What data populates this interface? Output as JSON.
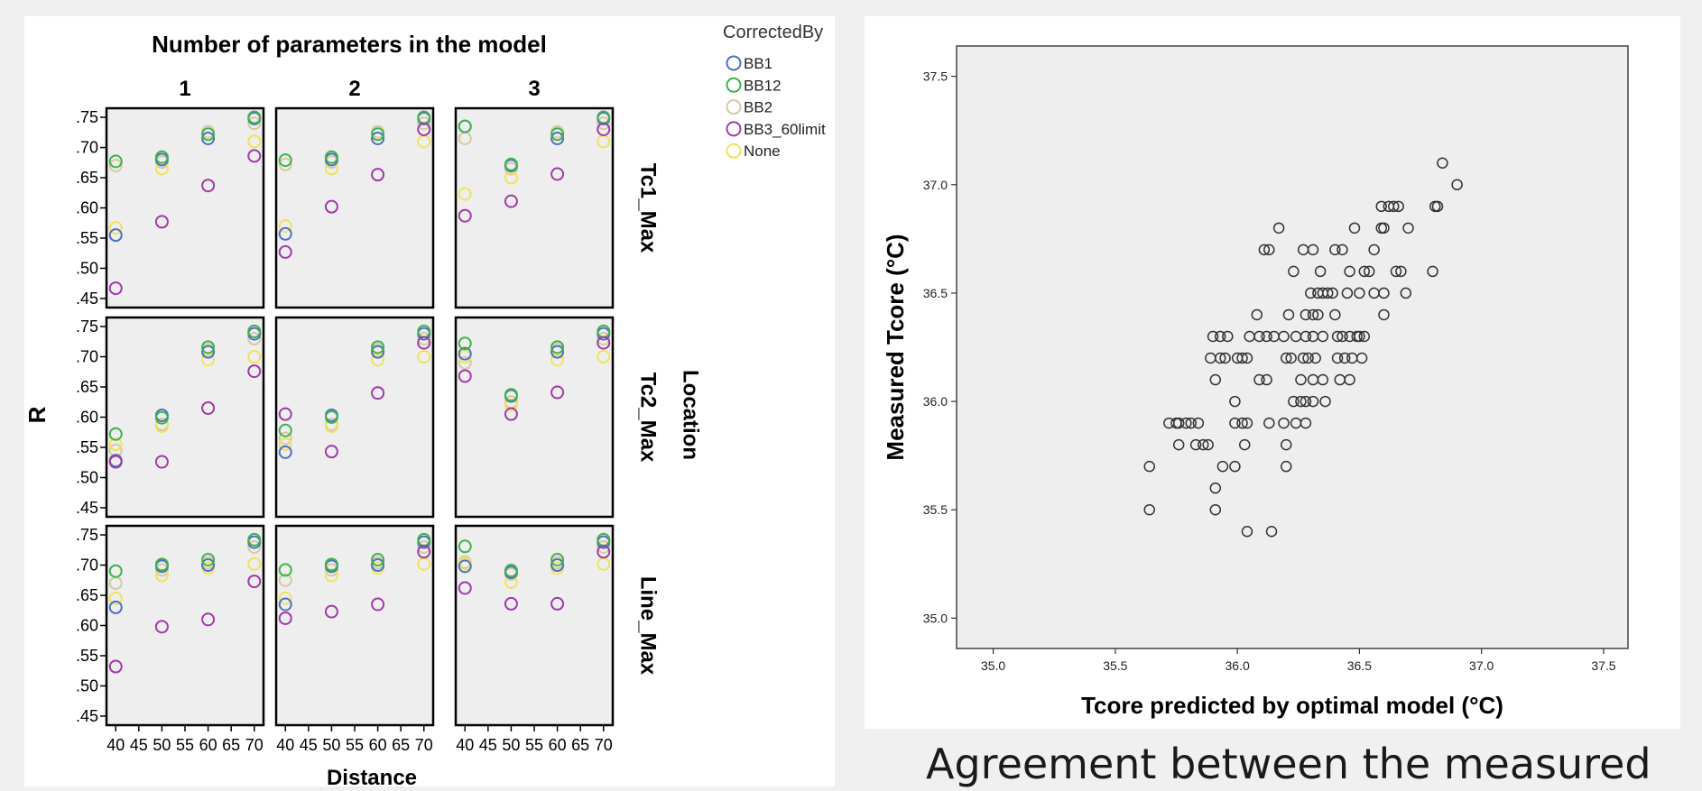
{
  "caption": "Agreement between the measured",
  "chart_data": [
    {
      "type": "scatter",
      "title": "Number of parameters in the model",
      "xlabel": "Distance",
      "ylabel": "R",
      "row_group_label": "Location",
      "legend_title": "CorrectedBy",
      "legend_position": "top-right",
      "grid": false,
      "columns": [
        "1",
        "2",
        "3"
      ],
      "rows": [
        "Tc1_Max",
        "Tc2_Max",
        "Line_Max"
      ],
      "xlim": [
        38,
        72
      ],
      "ylim": [
        0.435,
        0.765
      ],
      "x_ticks": [
        "40",
        "45",
        "50",
        "55",
        "60",
        "65",
        "70"
      ],
      "y_ticks": [
        ".45",
        ".50",
        ".55",
        ".60",
        ".65",
        ".70",
        ".75"
      ],
      "series": [
        {
          "name": "BB1",
          "color": "#4f6fc4"
        },
        {
          "name": "BB12",
          "color": "#3cb44b"
        },
        {
          "name": "BB2",
          "color": "#d6c9a0"
        },
        {
          "name": "BB3_60limit",
          "color": "#a03aa8"
        },
        {
          "name": "None",
          "color": "#f0e35a"
        }
      ],
      "x": [
        40,
        50,
        60,
        70
      ],
      "panels": [
        {
          "row": "Tc1_Max",
          "column": "1",
          "values": {
            "BB1": [
              0.555,
              0.68,
              0.715,
              0.748
            ],
            "BB12": [
              0.677,
              0.684,
              0.722,
              0.75
            ],
            "BB2": [
              0.67,
              0.676,
              0.726,
              0.74
            ],
            "BB3_60limit": [
              0.467,
              0.577,
              0.637,
              0.686
            ],
            "None": [
              0.567,
              0.665,
              0.715,
              0.71
            ]
          }
        },
        {
          "row": "Tc1_Max",
          "column": "2",
          "values": {
            "BB1": [
              0.557,
              0.68,
              0.715,
              0.748
            ],
            "BB12": [
              0.679,
              0.684,
              0.722,
              0.75
            ],
            "BB2": [
              0.672,
              0.676,
              0.726,
              0.74
            ],
            "BB3_60limit": [
              0.527,
              0.602,
              0.655,
              0.73
            ],
            "None": [
              0.57,
              0.665,
              0.715,
              0.71
            ]
          }
        },
        {
          "row": "Tc1_Max",
          "column": "3",
          "values": {
            "BB1": [
              0.735,
              0.67,
              0.715,
              0.748
            ],
            "BB12": [
              0.735,
              0.672,
              0.722,
              0.75
            ],
            "BB2": [
              0.715,
              0.665,
              0.726,
              0.74
            ],
            "BB3_60limit": [
              0.587,
              0.611,
              0.656,
              0.73
            ],
            "None": [
              0.623,
              0.65,
              0.715,
              0.71
            ]
          }
        },
        {
          "row": "Tc2_Max",
          "column": "1",
          "values": {
            "BB1": [
              0.528,
              0.603,
              0.708,
              0.738
            ],
            "BB12": [
              0.572,
              0.599,
              0.716,
              0.742
            ],
            "BB2": [
              0.545,
              0.588,
              0.712,
              0.73
            ],
            "BB3_60limit": [
              0.526,
              0.526,
              0.615,
              0.676
            ],
            "None": [
              0.555,
              0.585,
              0.695,
              0.7
            ]
          }
        },
        {
          "row": "Tc2_Max",
          "column": "2",
          "values": {
            "BB1": [
              0.542,
              0.603,
              0.708,
              0.738
            ],
            "BB12": [
              0.578,
              0.6,
              0.716,
              0.742
            ],
            "BB2": [
              0.565,
              0.588,
              0.712,
              0.73
            ],
            "BB3_60limit": [
              0.605,
              0.543,
              0.64,
              0.723
            ],
            "None": [
              0.555,
              0.585,
              0.695,
              0.7
            ]
          }
        },
        {
          "row": "Tc2_Max",
          "column": "3",
          "values": {
            "BB1": [
              0.705,
              0.635,
              0.708,
              0.738
            ],
            "BB12": [
              0.722,
              0.637,
              0.716,
              0.742
            ],
            "BB2": [
              0.69,
              0.625,
              0.712,
              0.73
            ],
            "BB3_60limit": [
              0.668,
              0.605,
              0.641,
              0.723
            ],
            "None": [
              0.7,
              0.62,
              0.695,
              0.7
            ]
          }
        },
        {
          "row": "Line_Max",
          "column": "1",
          "values": {
            "BB1": [
              0.63,
              0.698,
              0.7,
              0.738
            ],
            "BB12": [
              0.69,
              0.701,
              0.709,
              0.742
            ],
            "BB2": [
              0.67,
              0.692,
              0.704,
              0.73
            ],
            "BB3_60limit": [
              0.532,
              0.598,
              0.61,
              0.673
            ],
            "None": [
              0.645,
              0.683,
              0.695,
              0.702
            ]
          }
        },
        {
          "row": "Line_Max",
          "column": "2",
          "values": {
            "BB1": [
              0.635,
              0.698,
              0.7,
              0.738
            ],
            "BB12": [
              0.692,
              0.701,
              0.709,
              0.742
            ],
            "BB2": [
              0.675,
              0.692,
              0.704,
              0.73
            ],
            "BB3_60limit": [
              0.612,
              0.623,
              0.635,
              0.722
            ],
            "None": [
              0.645,
              0.683,
              0.695,
              0.702
            ]
          }
        },
        {
          "row": "Line_Max",
          "column": "3",
          "values": {
            "BB1": [
              0.698,
              0.688,
              0.7,
              0.738
            ],
            "BB12": [
              0.731,
              0.691,
              0.709,
              0.742
            ],
            "BB2": [
              0.705,
              0.685,
              0.704,
              0.73
            ],
            "BB3_60limit": [
              0.662,
              0.636,
              0.636,
              0.722
            ],
            "None": [
              0.702,
              0.672,
              0.695,
              0.702
            ]
          }
        }
      ]
    },
    {
      "type": "scatter",
      "title": "",
      "xlabel": "Tcore predicted by optimal model (°C)",
      "ylabel": "Measured Tcore (°C)",
      "xlim": [
        34.85,
        37.6
      ],
      "ylim": [
        34.86,
        37.64
      ],
      "x_ticks": [
        "35.0",
        "35.5",
        "36.0",
        "36.5",
        "37.0",
        "37.5"
      ],
      "y_ticks": [
        "35.0",
        "35.5",
        "36.0",
        "36.5",
        "37.0",
        "37.5"
      ],
      "grid": false,
      "marker_color": "#333333",
      "points": [
        [
          35.64,
          35.7
        ],
        [
          35.64,
          35.5
        ],
        [
          35.72,
          35.9
        ],
        [
          35.75,
          35.9
        ],
        [
          35.76,
          35.9
        ],
        [
          35.79,
          35.9
        ],
        [
          35.81,
          35.9
        ],
        [
          35.84,
          35.9
        ],
        [
          35.76,
          35.8
        ],
        [
          35.83,
          35.8
        ],
        [
          35.86,
          35.8
        ],
        [
          35.88,
          35.8
        ],
        [
          35.91,
          35.6
        ],
        [
          35.91,
          35.5
        ],
        [
          35.94,
          35.7
        ],
        [
          35.99,
          35.7
        ],
        [
          36.04,
          35.4
        ],
        [
          36.14,
          35.4
        ],
        [
          35.9,
          36.3
        ],
        [
          35.93,
          36.3
        ],
        [
          35.96,
          36.3
        ],
        [
          35.89,
          36.2
        ],
        [
          35.93,
          36.2
        ],
        [
          35.95,
          36.2
        ],
        [
          36.0,
          36.2
        ],
        [
          36.02,
          36.2
        ],
        [
          36.04,
          36.2
        ],
        [
          35.91,
          36.1
        ],
        [
          35.99,
          36.0
        ],
        [
          35.99,
          35.9
        ],
        [
          36.02,
          35.9
        ],
        [
          36.04,
          35.9
        ],
        [
          36.03,
          35.8
        ],
        [
          36.05,
          36.3
        ],
        [
          36.08,
          36.4
        ],
        [
          36.09,
          36.1
        ],
        [
          36.12,
          36.1
        ],
        [
          36.09,
          36.3
        ],
        [
          36.12,
          36.3
        ],
        [
          36.15,
          36.3
        ],
        [
          36.19,
          36.3
        ],
        [
          36.21,
          36.4
        ],
        [
          36.2,
          36.2
        ],
        [
          36.22,
          36.2
        ],
        [
          36.27,
          36.2
        ],
        [
          36.23,
          36.0
        ],
        [
          36.26,
          36.0
        ],
        [
          36.28,
          36.0
        ],
        [
          36.31,
          36.0
        ],
        [
          36.36,
          36.0
        ],
        [
          36.26,
          36.1
        ],
        [
          36.31,
          36.1
        ],
        [
          36.13,
          35.9
        ],
        [
          36.19,
          35.9
        ],
        [
          36.24,
          35.9
        ],
        [
          36.28,
          35.9
        ],
        [
          36.2,
          35.8
        ],
        [
          36.2,
          35.7
        ],
        [
          36.11,
          36.7
        ],
        [
          36.13,
          36.7
        ],
        [
          36.17,
          36.8
        ],
        [
          36.23,
          36.6
        ],
        [
          36.27,
          36.7
        ],
        [
          36.31,
          36.7
        ],
        [
          36.34,
          36.6
        ],
        [
          36.3,
          36.5
        ],
        [
          36.33,
          36.5
        ],
        [
          36.35,
          36.5
        ],
        [
          36.37,
          36.5
        ],
        [
          36.39,
          36.5
        ],
        [
          36.28,
          36.4
        ],
        [
          36.31,
          36.4
        ],
        [
          36.33,
          36.4
        ],
        [
          36.35,
          36.3
        ],
        [
          36.24,
          36.3
        ],
        [
          36.28,
          36.3
        ],
        [
          36.31,
          36.3
        ],
        [
          36.29,
          36.2
        ],
        [
          36.32,
          36.2
        ],
        [
          36.35,
          36.1
        ],
        [
          36.4,
          36.4
        ],
        [
          36.4,
          36.7
        ],
        [
          36.43,
          36.7
        ],
        [
          36.46,
          36.6
        ],
        [
          36.48,
          36.8
        ],
        [
          36.45,
          36.5
        ],
        [
          36.5,
          36.5
        ],
        [
          36.41,
          36.3
        ],
        [
          36.43,
          36.3
        ],
        [
          36.46,
          36.3
        ],
        [
          36.49,
          36.3
        ],
        [
          36.41,
          36.2
        ],
        [
          36.44,
          36.2
        ],
        [
          36.47,
          36.2
        ],
        [
          36.42,
          36.1
        ],
        [
          36.46,
          36.1
        ],
        [
          36.5,
          36.3
        ],
        [
          36.52,
          36.3
        ],
        [
          36.51,
          36.2
        ],
        [
          36.52,
          36.6
        ],
        [
          36.54,
          36.6
        ],
        [
          36.56,
          36.5
        ],
        [
          36.56,
          36.7
        ],
        [
          36.59,
          36.8
        ],
        [
          36.6,
          36.8
        ],
        [
          36.59,
          36.9
        ],
        [
          36.62,
          36.9
        ],
        [
          36.64,
          36.9
        ],
        [
          36.66,
          36.9
        ],
        [
          36.6,
          36.4
        ],
        [
          36.6,
          36.5
        ],
        [
          36.65,
          36.6
        ],
        [
          36.67,
          36.6
        ],
        [
          36.69,
          36.5
        ],
        [
          36.7,
          36.8
        ],
        [
          36.8,
          36.6
        ],
        [
          36.81,
          36.9
        ],
        [
          36.82,
          36.9
        ],
        [
          36.84,
          37.1
        ],
        [
          36.9,
          37.0
        ]
      ]
    }
  ]
}
